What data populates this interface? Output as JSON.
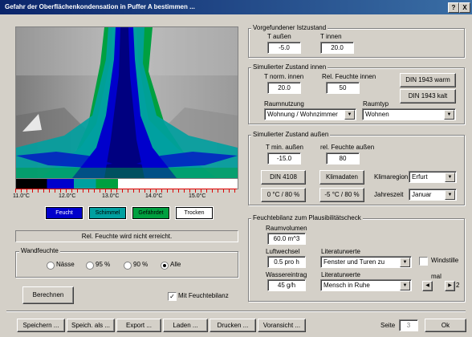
{
  "window": {
    "title": "Gefahr der Oberflächenkondensation in Puffer A bestimmen ...",
    "help": "?",
    "close": "X"
  },
  "colors": {
    "feucht": "#0000cc",
    "schimmel": "#00a0a0",
    "gefaehrdet": "#00a040",
    "trocken": "#ffffff"
  },
  "scale": {
    "ticks": [
      "11.0°C",
      "12.0°C",
      "13.0°C",
      "14.0°C",
      "15.0°C"
    ]
  },
  "legend": {
    "feucht": "Feucht",
    "schimmel": "Schimmel",
    "gefaehrdet": "Gefährdet",
    "trocken": "Trocken"
  },
  "status": "Rel. Feuchte wird nicht erreicht.",
  "wandfeuchte": {
    "title": "Wandfeuchte",
    "options": [
      "Nässe",
      "95 %",
      "90 %",
      "Alle"
    ],
    "selected": "Alle"
  },
  "berechnen": "Berechnen",
  "mit_feuchtebilanz": "Mit Feuchtebilanz",
  "ist": {
    "title": "Vorgefundener Istzustand",
    "t_aussen_label": "T außen",
    "t_innen_label": "T innen",
    "t_aussen": "-5.0",
    "t_innen": "20.0"
  },
  "innen": {
    "title": "Simulierter Zustand innen",
    "t_norm_label": "T norm. innen",
    "rel_label": "Rel. Feuchte innen",
    "t_norm": "20.0",
    "rel": "50",
    "din_warm": "DIN 1943 warm",
    "din_kalt": "DIN 1943 kalt",
    "raumnutzung_label": "Raumnutzung",
    "raumtyp_label": "Raumtyp",
    "raumnutzung": "Wohnung / Wohnzimmer",
    "raumtyp": "Wohnen"
  },
  "aussen": {
    "title": "Simulierter Zustand außen",
    "t_min_label": "T min. außen",
    "rel_label": "rel. Feuchte außen",
    "t_min": "-15.0",
    "rel": "80",
    "din4108": "DIN 4108",
    "klimadaten": "Klimadaten",
    "klimaregion_label": "Klimaregion",
    "klimaregion": "Erfurt",
    "preset1": "0 °C / 80 %",
    "preset2": "-5 °C / 80 %",
    "jahreszeit_label": "Jahreszeit",
    "jahreszeit": "Januar"
  },
  "bilanz": {
    "title": "Feuchtebilanz zum Plausibilitätscheck",
    "raumvolumen_label": "Raumvolumen",
    "raumvolumen": "60.0 m^3",
    "luftwechsel_label": "Luftwechsel",
    "luftwechsel": "0.5 pro h",
    "literatur1_label": "Literaturwerte",
    "literatur1": "Fenster und Turen zu",
    "windstille": "Windstille",
    "wassereintrag_label": "Wassereintrag",
    "wassereintrag": "45 g/h",
    "literatur2_label": "Literaturwerte",
    "literatur2": "Mensch in Ruhe",
    "mal_label": "mal",
    "mal_value": "2"
  },
  "footer": {
    "buttons": [
      "Speichern ...",
      "Speich. als ...",
      "Export ...",
      "Laden ...",
      "Drucken ...",
      "Voransicht ..."
    ],
    "seite_label": "Seite",
    "seite_value": "3",
    "ok": "Ok"
  }
}
